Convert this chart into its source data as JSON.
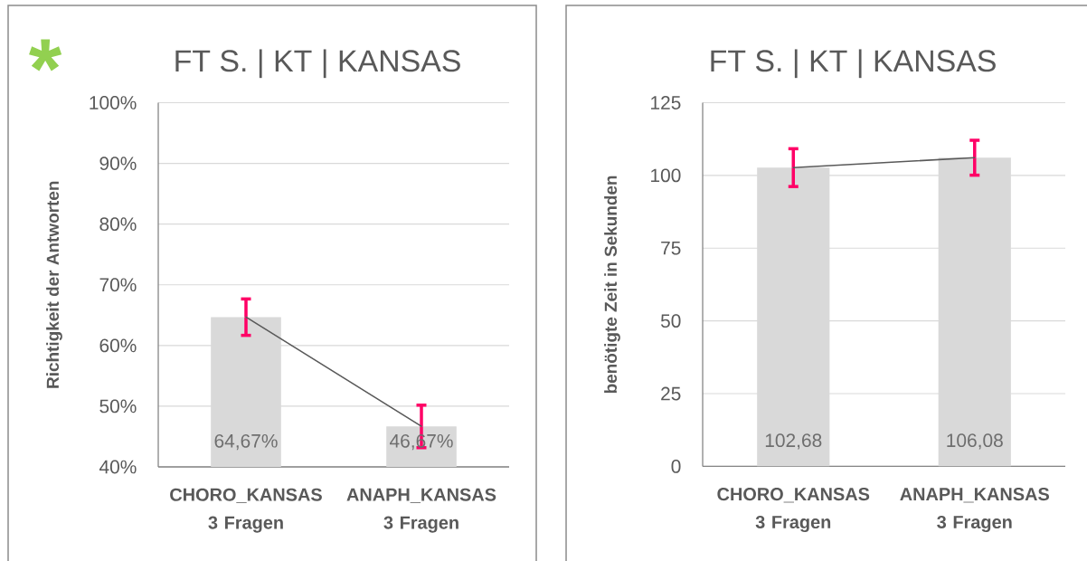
{
  "chart_data": [
    {
      "type": "bar",
      "title": "FT S. | KT | KANSAS",
      "ylabel": "Richtigkeit der Antworten",
      "annotations": [
        "*"
      ],
      "categories": [
        "CHORO_KANSAS 3 Fragen",
        "ANAPH_KANSAS 3 Fragen"
      ],
      "series": [
        {
          "color": "#d9d9d9",
          "values": [
            64.67,
            46.67
          ],
          "errors": [
            3,
            3.5
          ],
          "value_labels": [
            "64,67%",
            "46,67%"
          ]
        },
        {
          "type": "line",
          "color": "#595959",
          "values": [
            64.7,
            46.7
          ]
        }
      ],
      "ylim": [
        40,
        100
      ],
      "yticks": [
        {
          "value": 40,
          "label": "40%"
        },
        {
          "value": 50,
          "label": "50%"
        },
        {
          "value": 60,
          "label": "60%"
        },
        {
          "value": 70,
          "label": "70%"
        },
        {
          "value": 80,
          "label": "80%"
        },
        {
          "value": 90,
          "label": "90%"
        },
        {
          "value": 100,
          "label": "100%"
        }
      ],
      "grid": "y"
    },
    {
      "type": "bar",
      "title": "FT S. | KT | KANSAS",
      "ylabel": "benötigte Zeit in Sekunden",
      "categories": [
        "CHORO_KANSAS 3 Fragen",
        "ANAPH_KANSAS 3 Fragen"
      ],
      "series": [
        {
          "color": "#d9d9d9",
          "values": [
            102.68,
            106.08
          ],
          "errors": [
            6.5,
            6
          ],
          "value_labels": [
            "102,68",
            "106,08"
          ]
        },
        {
          "type": "line",
          "color": "#595959",
          "values": [
            102.7,
            106.1
          ]
        }
      ],
      "ylim": [
        0,
        125
      ],
      "yticks": [
        0,
        25,
        50,
        75,
        100,
        125
      ],
      "grid": "y"
    }
  ]
}
